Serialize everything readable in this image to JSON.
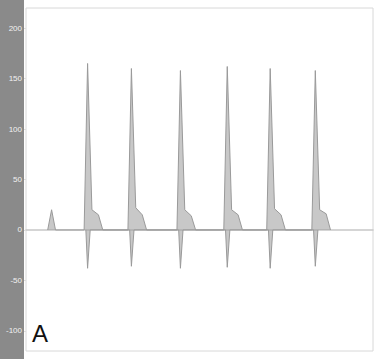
{
  "chart_data": {
    "type": "line",
    "annotation": "A",
    "xlim": [
      0,
      8
    ],
    "ylim": [
      -120,
      220
    ],
    "yticks": [
      200,
      150,
      100,
      50,
      0,
      -50,
      -100
    ],
    "tick_labels": "y",
    "grid": false,
    "series": [
      {
        "color": "#9a9a9a",
        "x": [
          0.5,
          0.59,
          0.68,
          1.34,
          1.42,
          1.52,
          1.67,
          1.77,
          2.35,
          2.43,
          2.53,
          2.68,
          2.78,
          3.48,
          3.56,
          3.66,
          3.81,
          3.91,
          4.56,
          4.64,
          4.74,
          4.89,
          4.99,
          5.55,
          5.63,
          5.73,
          5.88,
          5.98,
          6.59,
          6.67,
          6.77,
          6.92,
          7.02
        ],
        "values": [
          0,
          20,
          0,
          0,
          165,
          20,
          15,
          0,
          0,
          160,
          22,
          15,
          0,
          0,
          158,
          20,
          14,
          0,
          0,
          162,
          20,
          15,
          0,
          0,
          160,
          21,
          15,
          0,
          0,
          158,
          20,
          16,
          0
        ]
      },
      {
        "color": "#9a9a9a",
        "x": [
          1.38,
          1.42,
          1.48,
          2.39,
          2.43,
          2.49,
          3.52,
          3.56,
          3.62,
          4.6,
          4.64,
          4.7,
          5.59,
          5.63,
          5.69,
          6.63,
          6.67,
          6.73
        ],
        "values": [
          0,
          -38,
          0,
          0,
          -36,
          0,
          0,
          -38,
          0,
          0,
          -37,
          0,
          0,
          -38,
          0,
          0,
          -36,
          0
        ]
      }
    ]
  }
}
